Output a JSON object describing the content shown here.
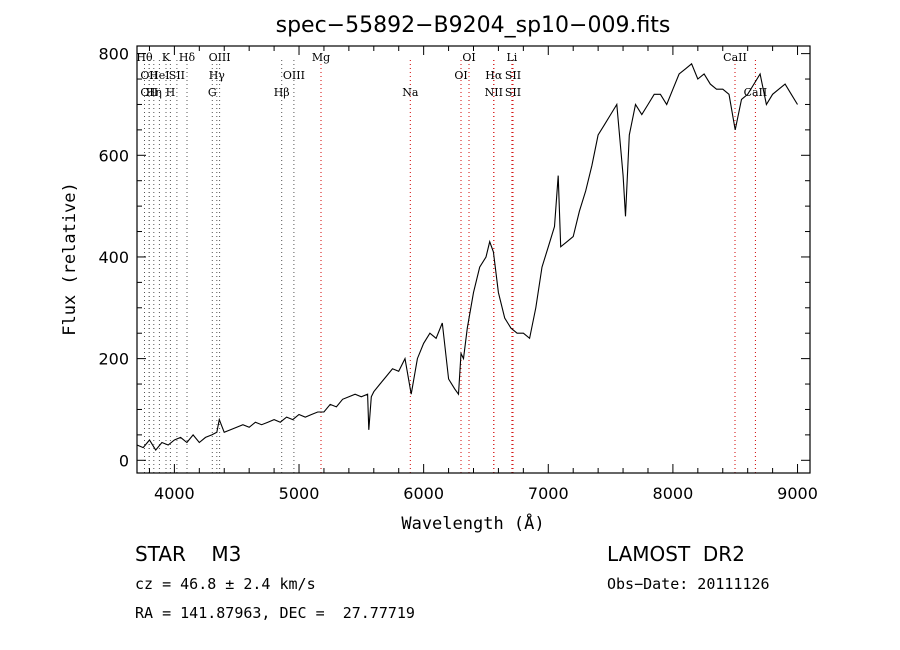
{
  "chart_data": {
    "type": "line",
    "title": "spec−55892−B9204_sp10−009.fits",
    "xlabel": "Wavelength (Å)",
    "ylabel": "Flux (relative)",
    "xlim": [
      3700,
      9100
    ],
    "ylim": [
      -25,
      815
    ],
    "xticks": [
      4000,
      5000,
      6000,
      7000,
      8000,
      9000
    ],
    "yticks": [
      0,
      200,
      400,
      600,
      800
    ],
    "grid": false,
    "series": [
      {
        "x": [
          3700,
          3750,
          3800,
          3850,
          3900,
          3950,
          4000,
          4050,
          4100,
          4150,
          4200,
          4250,
          4300,
          4340,
          4360,
          4400,
          4450,
          4500,
          4550,
          4600,
          4650,
          4700,
          4750,
          4800,
          4850,
          4900,
          4950,
          5000,
          5050,
          5100,
          5150,
          5200,
          5250,
          5300,
          5350,
          5400,
          5450,
          5500,
          5550,
          5560,
          5580,
          5600,
          5650,
          5700,
          5750,
          5800,
          5850,
          5900,
          5950,
          6000,
          6050,
          6100,
          6150,
          6200,
          6250,
          6280,
          6300,
          6320,
          6350,
          6400,
          6450,
          6500,
          6530,
          6560,
          6600,
          6650,
          6700,
          6750,
          6800,
          6850,
          6900,
          6950,
          7000,
          7050,
          7080,
          7100,
          7150,
          7200,
          7250,
          7300,
          7350,
          7400,
          7450,
          7500,
          7550,
          7600,
          7620,
          7650,
          7700,
          7750,
          7800,
          7850,
          7900,
          7950,
          8000,
          8050,
          8100,
          8150,
          8200,
          8250,
          8300,
          8350,
          8400,
          8450,
          8500,
          8550,
          8600,
          8650,
          8700,
          8750,
          8800,
          8850,
          8900,
          8950,
          9000
        ],
        "values": [
          30,
          25,
          40,
          20,
          35,
          30,
          40,
          45,
          35,
          50,
          35,
          45,
          50,
          55,
          80,
          55,
          60,
          65,
          70,
          65,
          75,
          70,
          75,
          80,
          75,
          85,
          80,
          90,
          85,
          90,
          95,
          95,
          110,
          105,
          120,
          125,
          130,
          125,
          130,
          60,
          125,
          135,
          150,
          165,
          180,
          175,
          200,
          130,
          200,
          230,
          250,
          240,
          270,
          160,
          140,
          130,
          210,
          200,
          260,
          330,
          380,
          400,
          430,
          410,
          330,
          280,
          260,
          250,
          250,
          240,
          300,
          380,
          420,
          460,
          560,
          420,
          430,
          440,
          490,
          530,
          580,
          640,
          660,
          680,
          700,
          560,
          480,
          640,
          700,
          680,
          700,
          720,
          720,
          700,
          730,
          760,
          770,
          780,
          750,
          760,
          740,
          730,
          730,
          720,
          650,
          710,
          720,
          740,
          760,
          700,
          720,
          730,
          740,
          720,
          700
        ]
      }
    ],
    "lines": [
      {
        "x": 3760,
        "label": "Hθ",
        "row": 0
      },
      {
        "x": 3798,
        "label": "OII",
        "row": 1
      },
      {
        "x": 3798,
        "label": "OII",
        "row": 2
      },
      {
        "x": 3835,
        "label": "Hη",
        "row": 2
      },
      {
        "x": 3880,
        "label": "HeI",
        "row": 1
      },
      {
        "x": 3933,
        "label": "K",
        "row": 0
      },
      {
        "x": 3968,
        "label": "H",
        "row": 2
      },
      {
        "x": 4020,
        "label": "SII",
        "row": 1
      },
      {
        "x": 4101,
        "label": "Hδ",
        "row": 0
      },
      {
        "x": 4304,
        "label": "G",
        "row": 2
      },
      {
        "x": 4340,
        "label": "Hγ",
        "row": 1
      },
      {
        "x": 4363,
        "label": "OIII",
        "row": 0
      },
      {
        "x": 4861,
        "label": "Hβ",
        "row": 2
      },
      {
        "x": 4959,
        "label": "OIII",
        "row": 1
      },
      {
        "x": 5176,
        "label": "Mg",
        "row": 0
      },
      {
        "x": 5893,
        "label": "Na",
        "row": 2
      },
      {
        "x": 6300,
        "label": "OI",
        "row": 1
      },
      {
        "x": 6364,
        "label": "OI",
        "row": 0
      },
      {
        "x": 6563,
        "label": "Hα",
        "row": 1
      },
      {
        "x": 6563,
        "label": "NII",
        "row": 2
      },
      {
        "x": 6708,
        "label": "Li",
        "row": 0
      },
      {
        "x": 6717,
        "label": "SII",
        "row": 1
      },
      {
        "x": 6717,
        "label": "SII",
        "row": 2
      },
      {
        "x": 8498,
        "label": "CaII",
        "row": 0
      },
      {
        "x": 8662,
        "label": "CaII",
        "row": 2
      }
    ]
  },
  "info": {
    "object": "STAR    M3",
    "survey": "LAMOST  DR2",
    "cz": "cz = 46.8 ± 2.4 km/s",
    "obsdate": "Obs−Date: 20111126",
    "radec": "RA = 141.87963, DEC =  27.77719"
  }
}
